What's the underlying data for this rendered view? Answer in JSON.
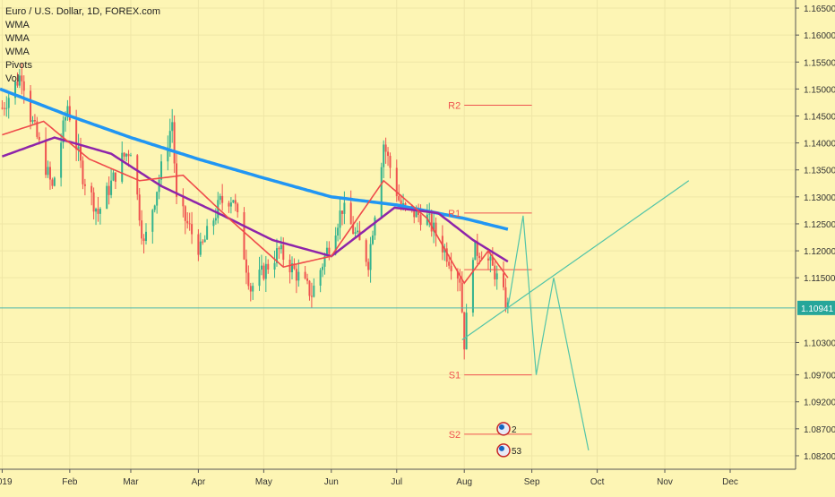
{
  "legend": {
    "symbol_line": "Euro / U.S. Dollar, 1D, FOREX.com",
    "indicators": [
      "WMA",
      "WMA",
      "WMA",
      "Pivots",
      "Vol"
    ]
  },
  "colors": {
    "background": "#fdf5b4",
    "grid": "#efe6a6",
    "up_candle": "#33b38e",
    "down_candle": "#ef5350",
    "wma_fast": "#ef4b4b",
    "wma_mid": "#8e24aa",
    "wma_slow": "#2196f3",
    "pivot": "#ef5350",
    "projection": "#52c4a8",
    "price_line": "#4db6ac",
    "last_price_badge": "#26a69a"
  },
  "chart_data": {
    "type": "candlestick",
    "title": "Euro / U.S. Dollar, 1D, FOREX.com",
    "symbol": "EURUSD",
    "x_start": "2018-12-31",
    "x_end": "2019-12-31",
    "ylim": [
      1.0795,
      1.1665
    ],
    "y_ticks": [
      "1.16500",
      "1.16000",
      "1.15500",
      "1.15000",
      "1.14500",
      "1.14000",
      "1.13500",
      "1.13000",
      "1.12500",
      "1.12000",
      "1.11500",
      "1.10300",
      "1.09700",
      "1.09200",
      "1.08700",
      "1.08200"
    ],
    "x_ticks": [
      {
        "label": "2019",
        "date": "2019-01-01"
      },
      {
        "label": "Feb",
        "date": "2019-02-01"
      },
      {
        "label": "Mar",
        "date": "2019-03-01"
      },
      {
        "label": "Apr",
        "date": "2019-04-01"
      },
      {
        "label": "May",
        "date": "2019-05-01"
      },
      {
        "label": "Jun",
        "date": "2019-06-01"
      },
      {
        "label": "Jul",
        "date": "2019-07-01"
      },
      {
        "label": "Aug",
        "date": "2019-08-01"
      },
      {
        "label": "Sep",
        "date": "2019-09-01"
      },
      {
        "label": "Oct",
        "date": "2019-10-01"
      },
      {
        "label": "Nov",
        "date": "2019-11-01"
      },
      {
        "label": "Dec",
        "date": "2019-12-01"
      }
    ],
    "last_price": {
      "value": 1.10941,
      "label": "1.10941"
    },
    "price_anchors": [
      [
        "2019-01-01",
        1.1465
      ],
      [
        "2019-01-10",
        1.153
      ],
      [
        "2019-01-14",
        1.145
      ],
      [
        "2019-01-24",
        1.1315
      ],
      [
        "2019-01-31",
        1.147
      ],
      [
        "2019-02-07",
        1.134
      ],
      [
        "2019-02-14",
        1.127
      ],
      [
        "2019-02-25",
        1.137
      ],
      [
        "2019-03-01",
        1.139
      ],
      [
        "2019-03-07",
        1.121
      ],
      [
        "2019-03-20",
        1.144
      ],
      [
        "2019-03-22",
        1.129
      ],
      [
        "2019-04-02",
        1.12
      ],
      [
        "2019-04-11",
        1.129
      ],
      [
        "2019-04-17",
        1.13
      ],
      [
        "2019-04-25",
        1.113
      ],
      [
        "2019-05-08",
        1.12
      ],
      [
        "2019-05-23",
        1.112
      ],
      [
        "2019-06-06",
        1.128
      ],
      [
        "2019-06-18",
        1.118
      ],
      [
        "2019-06-25",
        1.14
      ],
      [
        "2019-07-03",
        1.128
      ],
      [
        "2019-07-15",
        1.126
      ],
      [
        "2019-07-30",
        1.115
      ],
      [
        "2019-08-01",
        1.103
      ],
      [
        "2019-08-05",
        1.12
      ],
      [
        "2019-08-09",
        1.12
      ],
      [
        "2019-08-15",
        1.116
      ],
      [
        "2019-08-21",
        1.1094
      ]
    ],
    "wma_anchors": {
      "fast": [
        [
          "2019-01-01",
          1.1415
        ],
        [
          "2019-01-20",
          1.144
        ],
        [
          "2019-02-10",
          1.137
        ],
        [
          "2019-03-05",
          1.133
        ],
        [
          "2019-03-25",
          1.134
        ],
        [
          "2019-04-15",
          1.126
        ],
        [
          "2019-05-10",
          1.117
        ],
        [
          "2019-06-01",
          1.119
        ],
        [
          "2019-06-25",
          1.133
        ],
        [
          "2019-07-15",
          1.126
        ],
        [
          "2019-08-01",
          1.114
        ],
        [
          "2019-08-12",
          1.12
        ],
        [
          "2019-08-21",
          1.115
        ]
      ],
      "mid": [
        [
          "2019-01-01",
          1.1375
        ],
        [
          "2019-01-25",
          1.141
        ],
        [
          "2019-02-20",
          1.138
        ],
        [
          "2019-03-15",
          1.132
        ],
        [
          "2019-04-10",
          1.127
        ],
        [
          "2019-05-05",
          1.122
        ],
        [
          "2019-06-01",
          1.119
        ],
        [
          "2019-06-30",
          1.128
        ],
        [
          "2019-07-20",
          1.127
        ],
        [
          "2019-08-05",
          1.122
        ],
        [
          "2019-08-21",
          1.118
        ]
      ],
      "slow": [
        [
          "2018-12-31",
          1.15
        ],
        [
          "2019-02-01",
          1.145
        ],
        [
          "2019-03-01",
          1.141
        ],
        [
          "2019-04-01",
          1.137
        ],
        [
          "2019-05-01",
          1.1335
        ],
        [
          "2019-06-01",
          1.13
        ],
        [
          "2019-07-01",
          1.1285
        ],
        [
          "2019-08-01",
          1.126
        ],
        [
          "2019-08-21",
          1.124
        ]
      ]
    },
    "pivots": [
      {
        "label": "R2",
        "value": 1.147,
        "from": "2019-08-01",
        "to": "2019-09-01"
      },
      {
        "label": "R1",
        "value": 1.127,
        "from": "2019-08-01",
        "to": "2019-09-01"
      },
      {
        "label": "",
        "value": 1.1165,
        "from": "2019-08-01",
        "to": "2019-09-01"
      },
      {
        "label": "S1",
        "value": 1.097,
        "from": "2019-08-01",
        "to": "2019-09-01"
      },
      {
        "label": "S2",
        "value": 1.086,
        "from": "2019-08-01",
        "to": "2019-09-01"
      }
    ],
    "trendline": [
      [
        "2019-07-31",
        1.1035
      ],
      [
        "2019-11-12",
        1.133
      ]
    ],
    "projection_path": [
      [
        "2019-08-21",
        1.1094
      ],
      [
        "2019-08-28",
        1.1265
      ],
      [
        "2019-09-03",
        1.097
      ],
      [
        "2019-09-11",
        1.115
      ],
      [
        "2019-09-27",
        1.083
      ]
    ],
    "events": [
      {
        "date": "2019-08-19",
        "value": 1.087,
        "label": "2"
      },
      {
        "date": "2019-08-19",
        "value": 1.083,
        "label": "53"
      }
    ]
  }
}
